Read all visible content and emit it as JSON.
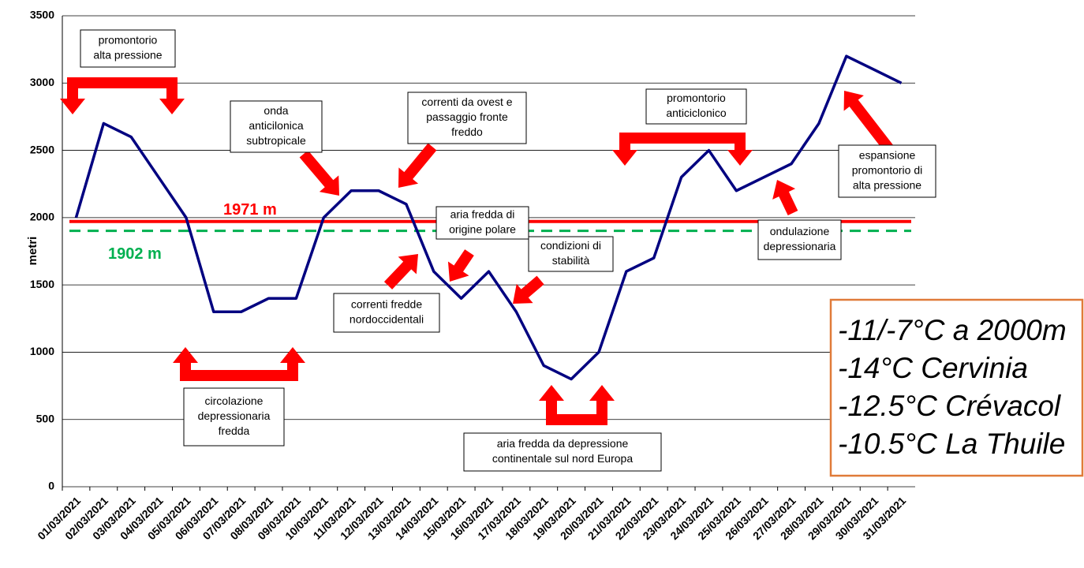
{
  "chart_data": {
    "type": "line",
    "y_label": "metri",
    "categories": [
      "01/03/2021",
      "02/03/2021",
      "03/03/2021",
      "04/03/2021",
      "05/03/2021",
      "06/03/2021",
      "07/03/2021",
      "08/03/2021",
      "09/03/2021",
      "10/03/2021",
      "11/03/2021",
      "12/03/2021",
      "13/03/2021",
      "14/03/2021",
      "15/03/2021",
      "16/03/2021",
      "17/03/2021",
      "18/03/2021",
      "19/03/2021",
      "20/03/2021",
      "21/03/2021",
      "22/03/2021",
      "23/03/2021",
      "24/03/2021",
      "25/03/2021",
      "26/03/2021",
      "27/03/2021",
      "28/03/2021",
      "29/03/2021",
      "30/03/2021",
      "31/03/2021"
    ],
    "series": [
      {
        "color": "#000080",
        "values": [
          2000,
          2700,
          2600,
          2300,
          2000,
          1300,
          1300,
          1400,
          1400,
          2000,
          2200,
          2200,
          2100,
          1600,
          1400,
          1600,
          1300,
          900,
          800,
          1000,
          1600,
          1700,
          2300,
          2500,
          2200,
          2300,
          2400,
          2700,
          3200,
          3100,
          3000
        ]
      }
    ],
    "ylim": [
      0,
      3500
    ],
    "yticks": [
      0,
      500,
      1000,
      1500,
      2000,
      2500,
      3000,
      3500
    ],
    "grid": true,
    "reference_lines": [
      {
        "value": 1971,
        "label": "1971 m",
        "color": "#ff0000",
        "dashed": false
      },
      {
        "value": 1902,
        "label": "1902 m",
        "color": "#00b050",
        "dashed": true
      }
    ],
    "annotations": [
      {
        "lines": [
          "promontorio",
          "alta pressione"
        ]
      },
      {
        "lines": [
          "onda",
          "anticilonica",
          "subtropicale"
        ]
      },
      {
        "lines": [
          "correnti da ovest e",
          "passaggio fronte",
          "freddo"
        ]
      },
      {
        "lines": [
          "aria fredda di",
          "origine polare"
        ]
      },
      {
        "lines": [
          "condizioni di",
          "stabilità"
        ]
      },
      {
        "lines": [
          "correnti fredde",
          "nordoccidentali"
        ]
      },
      {
        "lines": [
          "circolazione",
          "depressionaria",
          "fredda"
        ]
      },
      {
        "lines": [
          "aria fredda da depressione",
          "continentale sul nord Europa"
        ]
      },
      {
        "lines": [
          "promontorio",
          "anticiclonico"
        ]
      },
      {
        "lines": [
          "espansione",
          "promontorio di",
          "alta pressione"
        ]
      },
      {
        "lines": [
          "ondulazione",
          "depressionaria"
        ]
      }
    ],
    "side_note": [
      "-11/-7°C a 2000m",
      "-14°C Cervinia",
      "-12.5°C Crévacol",
      "-10.5°C La Thuile"
    ]
  }
}
